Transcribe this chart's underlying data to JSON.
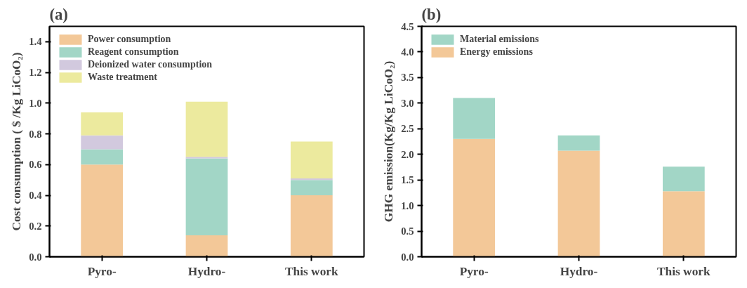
{
  "chart_data": [
    {
      "type": "bar",
      "stacked": true,
      "title": "(a)",
      "ylabel": "Cost consumption ( $ /Kg LiCoO₂)",
      "categories": [
        "Pyro-",
        "Hydro-",
        "This work"
      ],
      "ylim": [
        0,
        1.5
      ],
      "yticks": [
        {
          "value": 0,
          "label": "0.0"
        },
        0.2,
        0.4,
        0.6,
        0.8,
        {
          "value": 1,
          "label": "1.0"
        },
        1.2,
        1.4
      ],
      "grid": false,
      "legend": "top left",
      "series": [
        {
          "name": "Power consumption",
          "color": "#f3c898",
          "values": [
            0.6,
            0.14,
            0.4
          ]
        },
        {
          "name": "Reagent consumption",
          "color": "#a2d6c6",
          "values": [
            0.1,
            0.5,
            0.1
          ]
        },
        {
          "name": "Deionized water consumption",
          "color": "#d2c9de",
          "values": [
            0.09,
            0.01,
            0.01
          ]
        },
        {
          "name": "Waste treatment",
          "color": "#ecea9e",
          "values": [
            0.15,
            0.36,
            0.24
          ]
        }
      ]
    },
    {
      "type": "bar",
      "stacked": true,
      "title": "(b)",
      "ylabel": "GHG emission(Kg/Kg LiCoO₂)",
      "categories": [
        "Pyro-",
        "Hydro-",
        "This work"
      ],
      "ylim": [
        0,
        4.5
      ],
      "yticks": [
        {
          "value": 0,
          "label": "0.0"
        },
        0.5,
        {
          "value": 1,
          "label": "1.0"
        },
        1.5,
        {
          "value": 2,
          "label": "2.0"
        },
        2.5,
        {
          "value": 3,
          "label": "3.0"
        },
        3.5,
        {
          "value": 4,
          "label": "4.0"
        },
        4.5
      ],
      "grid": false,
      "legend": "top left",
      "series": [
        {
          "name": "Energy emissions",
          "color": "#f3c898",
          "values": [
            2.3,
            2.07,
            1.28
          ]
        },
        {
          "name": "Material emissions",
          "color": "#a2d6c6",
          "values": [
            0.8,
            0.3,
            0.48
          ]
        }
      ]
    }
  ]
}
